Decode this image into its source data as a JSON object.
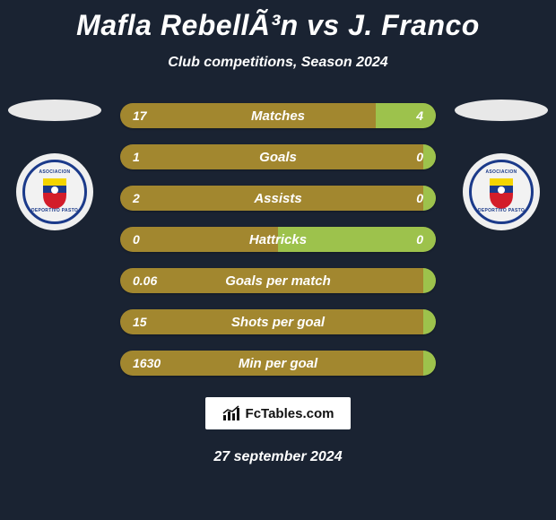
{
  "header": {
    "title": "Mafla RebellÃ³n vs J. Franco",
    "subtitle": "Club competitions, Season 2024"
  },
  "colors": {
    "left_seg": "#a2872f",
    "right_seg": "#9dc24c",
    "background": "#1a2332",
    "badge_ring": "#1b3a8a"
  },
  "players": {
    "left": {
      "club_line1": "ASOCIACION",
      "club_line2": "DEPORTIVO PASTO"
    },
    "right": {
      "club_line1": "ASOCIACION",
      "club_line2": "DEPORTIVO PASTO"
    }
  },
  "shield_colors": {
    "top": "#f4d400",
    "mid": "#1b3a8a",
    "bottom": "#d31d2a",
    "ball": "#ffffff"
  },
  "stats": [
    {
      "label": "Matches",
      "left_val": "17",
      "right_val": "4",
      "left_pct": 81,
      "right_pct": 19
    },
    {
      "label": "Goals",
      "left_val": "1",
      "right_val": "0",
      "left_pct": 100,
      "right_pct": 0
    },
    {
      "label": "Assists",
      "left_val": "2",
      "right_val": "0",
      "left_pct": 100,
      "right_pct": 0
    },
    {
      "label": "Hattricks",
      "left_val": "0",
      "right_val": "0",
      "left_pct": 50,
      "right_pct": 50
    },
    {
      "label": "Goals per match",
      "left_val": "0.06",
      "right_val": "",
      "left_pct": 100,
      "right_pct": 0
    },
    {
      "label": "Shots per goal",
      "left_val": "15",
      "right_val": "",
      "left_pct": 100,
      "right_pct": 0
    },
    {
      "label": "Min per goal",
      "left_val": "1630",
      "right_val": "",
      "left_pct": 100,
      "right_pct": 0
    }
  ],
  "footer": {
    "brand": "FcTables.com",
    "date": "27 september 2024"
  }
}
